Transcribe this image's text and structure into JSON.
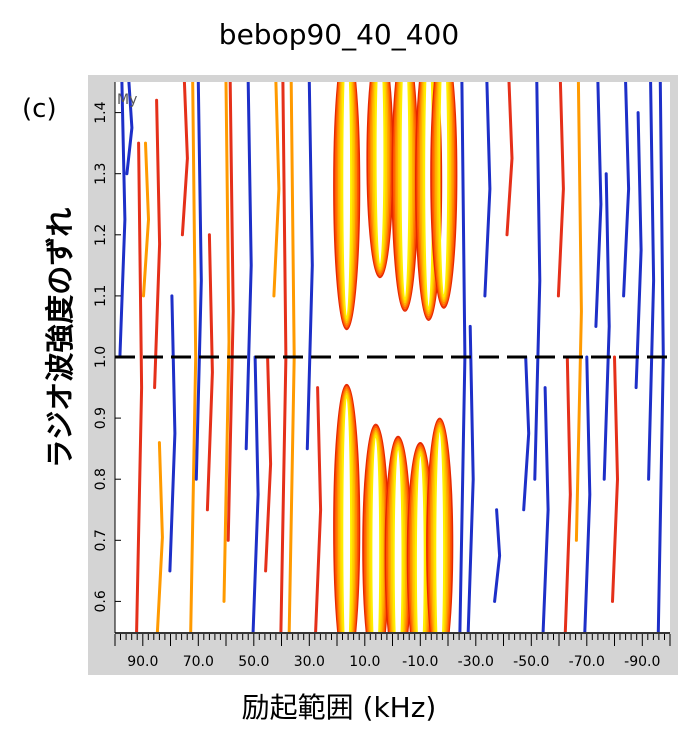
{
  "chart_data": {
    "type": "contour",
    "title": "bebop90_40_400",
    "panel_label": "(c)",
    "plot_tag": "My",
    "xlabel": "励起範囲 (kHz)",
    "ylabel": "ラジオ波強度のずれ",
    "xlim": [
      100,
      -100
    ],
    "ylim": [
      0.55,
      1.45
    ],
    "x_ticks": [
      "90.0",
      "70.0",
      "50.0",
      "30.0",
      "10.0",
      "-10.0",
      "-30.0",
      "-50.0",
      "-70.0",
      "-90.0"
    ],
    "x_tick_values": [
      90,
      70,
      50,
      30,
      10,
      -10,
      -30,
      -50,
      -70,
      -90
    ],
    "y_ticks": [
      "0.6",
      "0.7",
      "0.8",
      "0.9",
      "1.0",
      "1.1",
      "1.2",
      "1.3",
      "1.4"
    ],
    "y_tick_values": [
      0.6,
      0.7,
      0.8,
      0.9,
      1.0,
      1.1,
      1.2,
      1.3,
      1.4
    ],
    "reference_line": {
      "y": 1.0,
      "style": "dashed",
      "color": "#000000"
    },
    "grid": false,
    "contour_colors": [
      "#ffee00",
      "#ffd200",
      "#ffb000",
      "#ff8800",
      "#ff5a00",
      "#e62800"
    ],
    "stripe_colors": {
      "blue": "#1d2fc8",
      "red": "#e5301a",
      "orange": "#ff9a00"
    },
    "lobes": [
      {
        "x": 16.5,
        "y_edge": 1.045,
        "direction": "up"
      },
      {
        "x": 4.5,
        "y_edge": 1.13,
        "direction": "up"
      },
      {
        "x": -4.5,
        "y_edge": 1.075,
        "direction": "up"
      },
      {
        "x": -13.0,
        "y_edge": 1.06,
        "direction": "up"
      },
      {
        "x": -18.5,
        "y_edge": 1.08,
        "direction": "up"
      },
      {
        "x": 16.5,
        "y_edge": 0.955,
        "direction": "down"
      },
      {
        "x": 6.0,
        "y_edge": 0.89,
        "direction": "down"
      },
      {
        "x": -2.0,
        "y_edge": 0.87,
        "direction": "down"
      },
      {
        "x": -10.0,
        "y_edge": 0.86,
        "direction": "down"
      },
      {
        "x": -17.0,
        "y_edge": 0.9,
        "direction": "down"
      }
    ],
    "stripes": [
      {
        "x": 97.5,
        "y": [
          1.0,
          1.45
        ],
        "color": "blue"
      },
      {
        "x": 95.0,
        "y": [
          1.3,
          1.45
        ],
        "color": "blue"
      },
      {
        "x": 91.5,
        "y": [
          0.55,
          1.35
        ],
        "color": "red"
      },
      {
        "x": 89.0,
        "y": [
          1.1,
          1.35
        ],
        "color": "orange"
      },
      {
        "x": 85.0,
        "y": [
          0.95,
          1.42
        ],
        "color": "red"
      },
      {
        "x": 84.0,
        "y": [
          0.55,
          0.86
        ],
        "color": "orange"
      },
      {
        "x": 79.5,
        "y": [
          0.65,
          1.1
        ],
        "color": "blue"
      },
      {
        "x": 75.0,
        "y": [
          1.2,
          1.45
        ],
        "color": "red"
      },
      {
        "x": 72.0,
        "y": [
          0.55,
          1.45
        ],
        "color": "orange"
      },
      {
        "x": 70.0,
        "y": [
          0.8,
          1.45
        ],
        "color": "blue"
      },
      {
        "x": 66.0,
        "y": [
          0.75,
          1.2
        ],
        "color": "red"
      },
      {
        "x": 60.0,
        "y": [
          0.6,
          1.45
        ],
        "color": "orange"
      },
      {
        "x": 58.5,
        "y": [
          0.7,
          1.45
        ],
        "color": "red"
      },
      {
        "x": 52.0,
        "y": [
          0.85,
          1.45
        ],
        "color": "blue"
      },
      {
        "x": 49.5,
        "y": [
          0.55,
          1.0
        ],
        "color": "blue"
      },
      {
        "x": 45.0,
        "y": [
          0.65,
          1.0
        ],
        "color": "red"
      },
      {
        "x": 42.0,
        "y": [
          1.1,
          1.45
        ],
        "color": "orange"
      },
      {
        "x": 39.5,
        "y": [
          0.55,
          1.45
        ],
        "color": "red"
      },
      {
        "x": 36.5,
        "y": [
          0.55,
          1.45
        ],
        "color": "orange"
      },
      {
        "x": 30.0,
        "y": [
          0.85,
          1.45
        ],
        "color": "blue"
      },
      {
        "x": 27.0,
        "y": [
          0.55,
          0.95
        ],
        "color": "red"
      },
      {
        "x": -25.0,
        "y": [
          0.55,
          1.45
        ],
        "color": "blue"
      },
      {
        "x": -28.0,
        "y": [
          0.55,
          1.05
        ],
        "color": "blue"
      },
      {
        "x": -34.0,
        "y": [
          1.1,
          1.45
        ],
        "color": "blue"
      },
      {
        "x": -37.5,
        "y": [
          0.6,
          0.75
        ],
        "color": "blue"
      },
      {
        "x": -42.0,
        "y": [
          1.2,
          1.45
        ],
        "color": "red"
      },
      {
        "x": -48.0,
        "y": [
          0.75,
          1.0
        ],
        "color": "blue"
      },
      {
        "x": -52.0,
        "y": [
          0.8,
          1.45
        ],
        "color": "blue"
      },
      {
        "x": -55.0,
        "y": [
          0.55,
          0.95
        ],
        "color": "blue"
      },
      {
        "x": -60.5,
        "y": [
          1.1,
          1.45
        ],
        "color": "red"
      },
      {
        "x": -63.0,
        "y": [
          0.55,
          1.0
        ],
        "color": "red"
      },
      {
        "x": -67.0,
        "y": [
          0.7,
          1.45
        ],
        "color": "orange"
      },
      {
        "x": -70.0,
        "y": [
          0.55,
          1.0
        ],
        "color": "blue"
      },
      {
        "x": -74.0,
        "y": [
          1.05,
          1.45
        ],
        "color": "blue"
      },
      {
        "x": -77.0,
        "y": [
          0.8,
          1.3
        ],
        "color": "blue"
      },
      {
        "x": -80.0,
        "y": [
          0.6,
          1.0
        ],
        "color": "red"
      },
      {
        "x": -84.0,
        "y": [
          1.1,
          1.45
        ],
        "color": "blue"
      },
      {
        "x": -88.5,
        "y": [
          0.95,
          1.4
        ],
        "color": "blue"
      },
      {
        "x": -93.0,
        "y": [
          0.8,
          1.45
        ],
        "color": "blue"
      },
      {
        "x": -96.5,
        "y": [
          0.55,
          1.45
        ],
        "color": "blue"
      }
    ]
  }
}
